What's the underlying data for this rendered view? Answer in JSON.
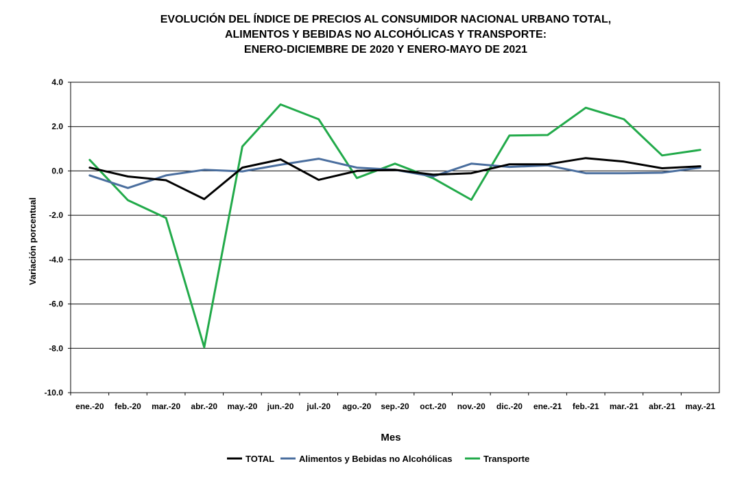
{
  "chart_data": {
    "type": "line",
    "title": [
      "EVOLUCIÓN  DEL ÍNDICE  DE PRECIOS  AL CONSUMIDOR  NACIONAL  URBANO  TOTAL,",
      "ALIMENTOS  Y  BEBIDAS  NO  ALCOHÓLICAS  Y  TRANSPORTE:",
      "ENERO-DICIEMBRE  DE 2020  Y  ENERO-MAYO  DE  2021"
    ],
    "xlabel": "Mes",
    "ylabel": "Variación  porcentual",
    "ylim": [
      -10,
      4
    ],
    "yticks": [
      4,
      2,
      0,
      -2,
      -4,
      -6,
      -8,
      -10
    ],
    "ytick_labels": [
      "4.0",
      "2.0",
      "0.0",
      "-2.0",
      "-4.0",
      "-6.0",
      "-8.0",
      "-10.0"
    ],
    "grid": true,
    "legend_position": "bottom",
    "categories": [
      "ene.-20",
      "feb.-20",
      "mar.-20",
      "abr.-20",
      "may.-20",
      "jun.-20",
      "jul.-20",
      "ago.-20",
      "sep.-20",
      "oct.-20",
      "nov.-20",
      "dic.-20",
      "ene.-21",
      "feb.-21",
      "mar.-21",
      "abr.-21",
      "may.-21"
    ],
    "series": [
      {
        "name": "TOTAL",
        "color": "#000000",
        "values": [
          0.15,
          -0.25,
          -0.42,
          -1.27,
          0.15,
          0.52,
          -0.4,
          0.0,
          0.05,
          -0.17,
          -0.1,
          0.3,
          0.3,
          0.58,
          0.42,
          0.12,
          0.21
        ]
      },
      {
        "name": "Alimentos y Bebidas no Alcohólicas",
        "color": "#4A6E9E",
        "values": [
          -0.2,
          -0.77,
          -0.2,
          0.05,
          -0.02,
          0.28,
          0.55,
          0.15,
          0.05,
          -0.25,
          0.33,
          0.18,
          0.25,
          -0.1,
          -0.1,
          -0.08,
          0.15
        ]
      },
      {
        "name": "Transporte",
        "color": "#22AA4A",
        "values": [
          0.5,
          -1.32,
          -2.12,
          -7.95,
          1.1,
          3.0,
          2.33,
          -0.32,
          0.33,
          -0.33,
          -1.3,
          1.6,
          1.62,
          2.85,
          2.33,
          0.7,
          0.95
        ]
      }
    ]
  }
}
